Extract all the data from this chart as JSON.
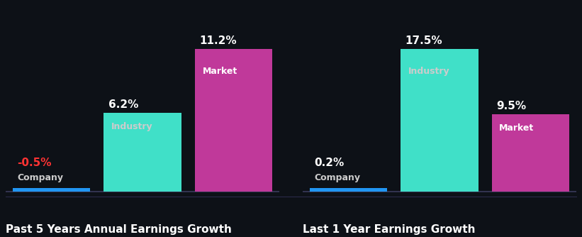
{
  "background_color": "#0d1117",
  "panel1": {
    "title": "Past 5 Years Annual Earnings Growth",
    "bars": [
      {
        "label": "Company",
        "value": -0.5,
        "display_value": "-0.5%",
        "color": "#2196f3",
        "value_color": "#ff3333",
        "label_color": "#cccccc",
        "is_company": true
      },
      {
        "label": "Industry",
        "value": 6.2,
        "display_value": "6.2%",
        "color": "#40e0c8",
        "value_color": "#ffffff",
        "label_color": "#cccccc",
        "is_company": false
      },
      {
        "label": "Market",
        "value": 11.2,
        "display_value": "11.2%",
        "color": "#c0399a",
        "value_color": "#ffffff",
        "label_color": "#ffffff",
        "is_company": false
      }
    ]
  },
  "panel2": {
    "title": "Last 1 Year Earnings Growth",
    "bars": [
      {
        "label": "Company",
        "value": 0.2,
        "display_value": "0.2%",
        "color": "#2196f3",
        "value_color": "#ffffff",
        "label_color": "#cccccc",
        "is_company": true
      },
      {
        "label": "Industry",
        "value": 17.5,
        "display_value": "17.5%",
        "color": "#40e0c8",
        "value_color": "#ffffff",
        "label_color": "#cccccc",
        "is_company": false
      },
      {
        "label": "Market",
        "value": 9.5,
        "display_value": "9.5%",
        "color": "#c0399a",
        "value_color": "#ffffff",
        "label_color": "#ffffff",
        "is_company": false
      }
    ]
  },
  "title_fontsize": 11,
  "value_fontsize": 11,
  "label_fontsize": 9,
  "bar_width": 0.85
}
